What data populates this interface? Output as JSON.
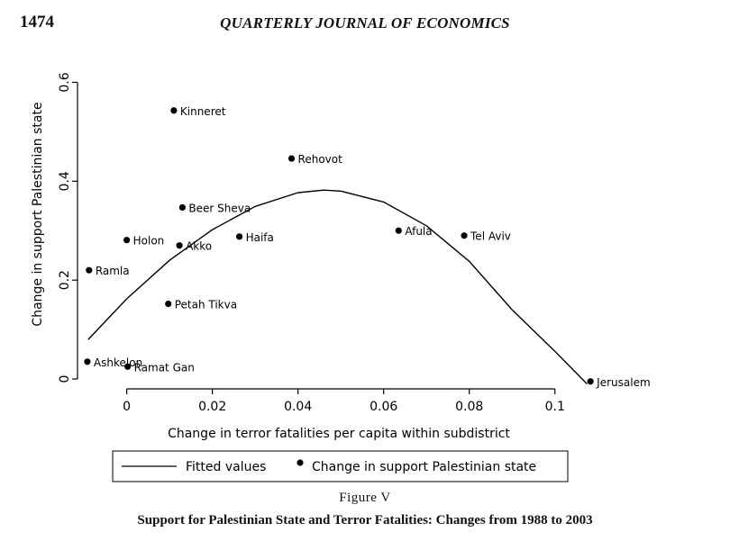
{
  "header": {
    "page_number": "1474",
    "journal": "QUARTERLY JOURNAL OF ECONOMICS"
  },
  "figure": {
    "label": "Figure V",
    "caption": "Support for Palestinian State and Terror Fatalities: Changes from 1988 to 2003"
  },
  "chart_data": {
    "type": "scatter",
    "xlabel": "Change in terror fatalities per capita within subdistrict",
    "ylabel": "Change in support Palestinian state",
    "xlim": [
      -0.0115,
      0.111
    ],
    "ylim": [
      -0.02,
      0.63
    ],
    "x_ticks": [
      0,
      0.02,
      0.04,
      0.06,
      0.08,
      0.1
    ],
    "x_tick_labels": [
      "0",
      "0.02",
      "0.04",
      "0.06",
      "0.08",
      "0.1"
    ],
    "y_ticks": [
      0,
      0.2,
      0.4,
      0.6
    ],
    "y_tick_labels": [
      "0",
      "0.2",
      "0.4",
      "0.6"
    ],
    "grid": false,
    "legend_position": "bottom",
    "series": [
      {
        "name": "Change in support Palestinian state",
        "kind": "scatter",
        "points": [
          {
            "label": "Kinneret",
            "x": 0.011,
            "y": 0.543
          },
          {
            "label": "Rehovot",
            "x": 0.0385,
            "y": 0.446
          },
          {
            "label": "Beer Sheva",
            "x": 0.013,
            "y": 0.347
          },
          {
            "label": "Holon",
            "x": 0.0,
            "y": 0.281
          },
          {
            "label": "Akko",
            "x": 0.0123,
            "y": 0.27
          },
          {
            "label": "Haifa",
            "x": 0.0263,
            "y": 0.288
          },
          {
            "label": "Afula",
            "x": 0.0635,
            "y": 0.3
          },
          {
            "label": "Tel Aviv",
            "x": 0.0788,
            "y": 0.29
          },
          {
            "label": "Ramla",
            "x": -0.0088,
            "y": 0.22
          },
          {
            "label": "Petah Tikva",
            "x": 0.0097,
            "y": 0.152
          },
          {
            "label": "Ashkelon",
            "x": -0.0092,
            "y": 0.035
          },
          {
            "label": "Ramat Gan",
            "x": 0.0002,
            "y": 0.025
          },
          {
            "label": "Jerusalem",
            "x": 0.1083,
            "y": -0.005
          }
        ]
      },
      {
        "name": "Fitted values",
        "kind": "line",
        "x": [
          -0.009,
          0.0,
          0.01,
          0.02,
          0.03,
          0.04,
          0.046,
          0.05,
          0.06,
          0.07,
          0.08,
          0.09,
          0.1,
          0.1075
        ],
        "y": [
          0.08,
          0.162,
          0.24,
          0.302,
          0.349,
          0.377,
          0.382,
          0.38,
          0.358,
          0.31,
          0.238,
          0.14,
          0.056,
          -0.01
        ]
      }
    ]
  }
}
